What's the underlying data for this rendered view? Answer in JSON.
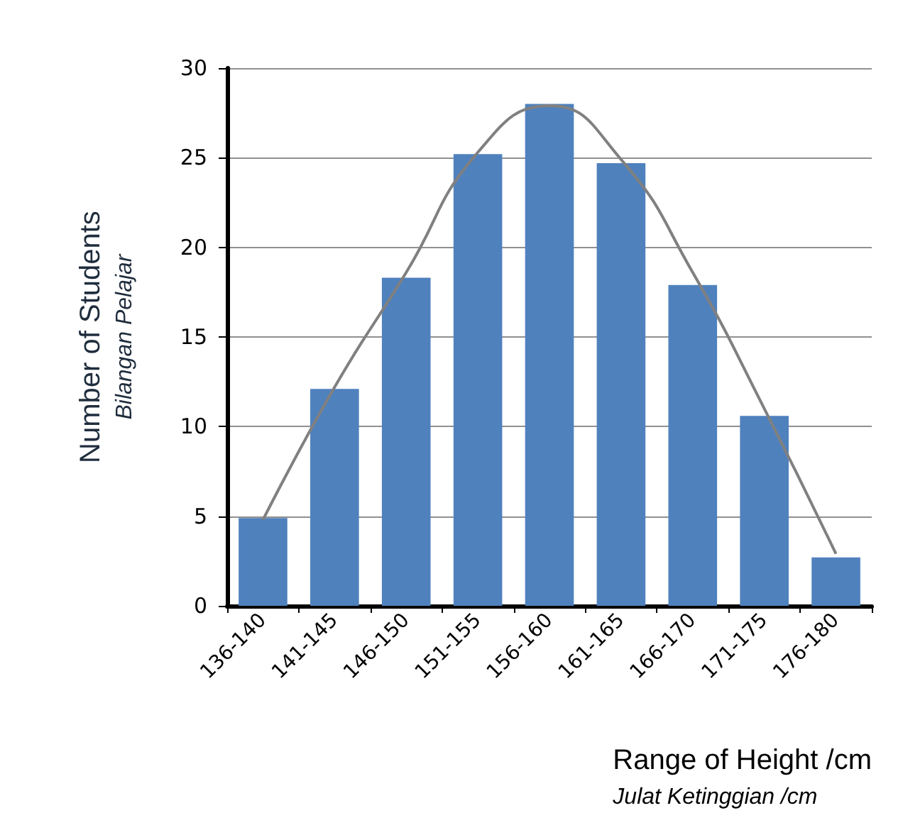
{
  "chart_data": {
    "type": "bar",
    "xlabel": "Range of Height /cm\nJulat Ketinggian /cm",
    "ylabel": "Number of Students\nBilangan Pelajar",
    "categories": [
      "136-140",
      "141-145",
      "146-150",
      "151-155",
      "156-160",
      "161-165",
      "166-170",
      "171-175",
      "176-180"
    ],
    "series": [
      {
        "color": "#4f81bd",
        "values": [
          4.9,
          12.1,
          18.3,
          25.2,
          28,
          24.7,
          17.9,
          10.6,
          2.7
        ]
      },
      {
        "type": "line",
        "color": "#808080",
        "marker": "none",
        "values": [
          4.8,
          12.2,
          18.6,
          25.3,
          27.9,
          24.9,
          18.6,
          11,
          2.9
        ]
      }
    ],
    "ylim": [
      0,
      30
    ],
    "yticks": [
      0,
      5,
      10,
      15,
      20,
      25,
      30
    ],
    "grid": "y"
  }
}
